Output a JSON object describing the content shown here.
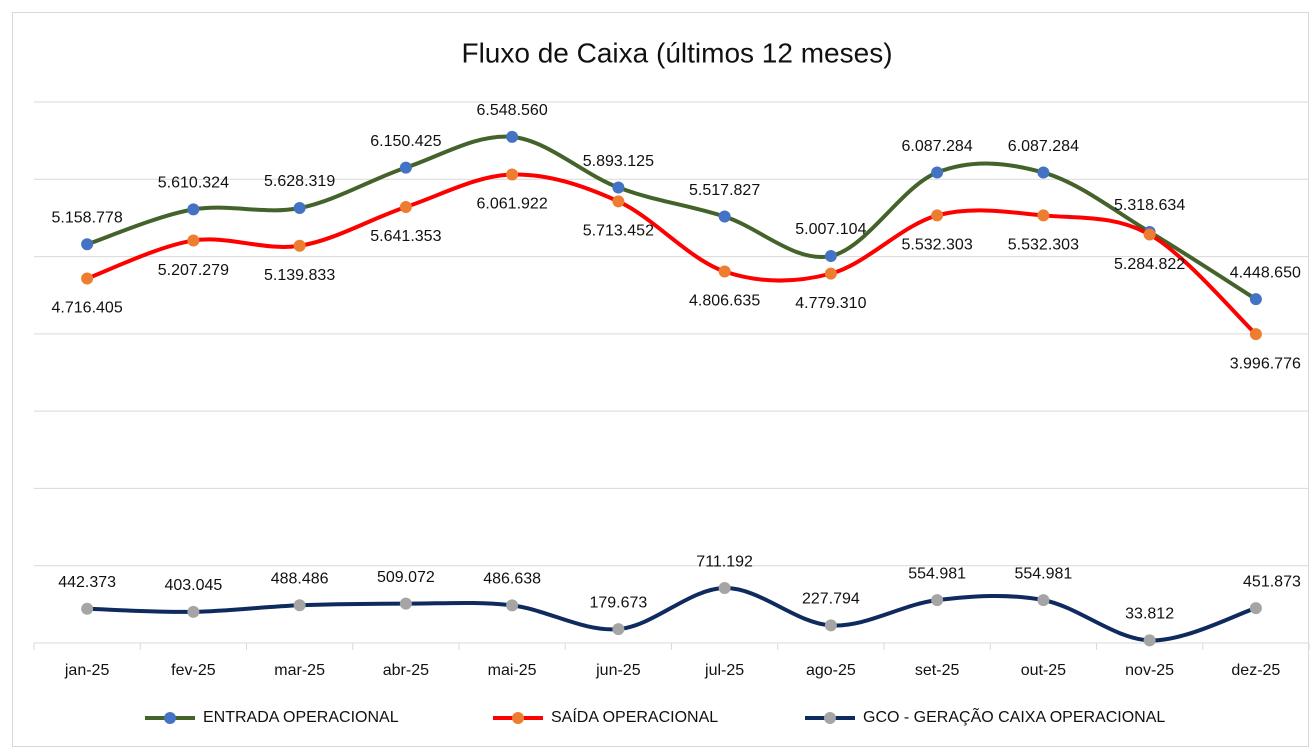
{
  "chart_data": {
    "type": "line",
    "title": "Fluxo de Caixa (últimos 12 meses)",
    "categories": [
      "jan-25",
      "fev-25",
      "mar-25",
      "abr-25",
      "mai-25",
      "jun-25",
      "jul-25",
      "ago-25",
      "set-25",
      "out-25",
      "nov-25",
      "dez-25"
    ],
    "series": [
      {
        "name": "ENTRADA OPERACIONAL",
        "color": "#43632a",
        "marker_color": "#4472c4",
        "values": [
          5158778,
          5610324,
          5628319,
          6150425,
          6548560,
          5893125,
          5517827,
          5007104,
          6087284,
          6087284,
          5318634,
          4448650
        ],
        "value_labels": [
          "5.158.778",
          "5.610.324",
          "5.628.319",
          "6.150.425",
          "6.548.560",
          "5.893.125",
          "5.517.827",
          "5.007.104",
          "6.087.284",
          "6.087.284",
          "5.318.634",
          "4.448.650"
        ]
      },
      {
        "name": "SAÍDA OPERACIONAL",
        "color": "#ff0000",
        "marker_color": "#ed7d31",
        "values": [
          4716405,
          5207279,
          5139833,
          5641353,
          6061922,
          5713452,
          4806635,
          4779310,
          5532303,
          5532303,
          5284822,
          3996776
        ],
        "value_labels": [
          "4.716.405",
          "5.207.279",
          "5.139.833",
          "5.641.353",
          "6.061.922",
          "5.713.452",
          "4.806.635",
          "4.779.310",
          "5.532.303",
          "5.532.303",
          "5.284.822",
          "3.996.776"
        ]
      },
      {
        "name": "GCO - GERAÇÃO CAIXA OPERACIONAL",
        "color": "#0e2a5e",
        "marker_color": "#a5a5a5",
        "values": [
          442373,
          403045,
          488486,
          509072,
          486638,
          179673,
          711192,
          227794,
          554981,
          554981,
          33812,
          451873
        ],
        "value_labels": [
          "442.373",
          "403.045",
          "488.486",
          "509.072",
          "486.638",
          "179.673",
          "711.192",
          "227.794",
          "554.981",
          "554.981",
          "33.812",
          "451.873"
        ]
      }
    ],
    "ylim": [
      0,
      7000000
    ],
    "yticks": [
      0,
      1000000,
      2000000,
      3000000,
      4000000,
      5000000,
      6000000,
      7000000
    ],
    "grid": true,
    "legend": "bottom"
  }
}
